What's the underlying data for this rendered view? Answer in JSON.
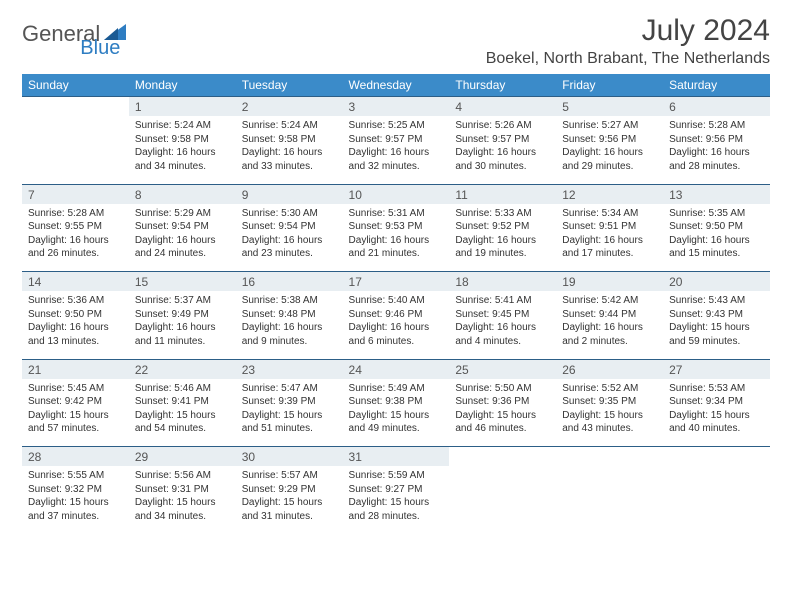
{
  "brand": {
    "part1": "General",
    "part2": "Blue"
  },
  "title": "July 2024",
  "location": "Boekel, North Brabant, The Netherlands",
  "colors": {
    "header_bg": "#3b8bc9",
    "daynum_bg": "#e8eef2",
    "border": "#2c5e87",
    "text": "#333333",
    "logo_blue": "#2e7dc2"
  },
  "day_headers": [
    "Sunday",
    "Monday",
    "Tuesday",
    "Wednesday",
    "Thursday",
    "Friday",
    "Saturday"
  ],
  "weeks": [
    [
      null,
      {
        "n": "1",
        "sr": "5:24 AM",
        "ss": "9:58 PM",
        "dl": "16 hours and 34 minutes."
      },
      {
        "n": "2",
        "sr": "5:24 AM",
        "ss": "9:58 PM",
        "dl": "16 hours and 33 minutes."
      },
      {
        "n": "3",
        "sr": "5:25 AM",
        "ss": "9:57 PM",
        "dl": "16 hours and 32 minutes."
      },
      {
        "n": "4",
        "sr": "5:26 AM",
        "ss": "9:57 PM",
        "dl": "16 hours and 30 minutes."
      },
      {
        "n": "5",
        "sr": "5:27 AM",
        "ss": "9:56 PM",
        "dl": "16 hours and 29 minutes."
      },
      {
        "n": "6",
        "sr": "5:28 AM",
        "ss": "9:56 PM",
        "dl": "16 hours and 28 minutes."
      }
    ],
    [
      {
        "n": "7",
        "sr": "5:28 AM",
        "ss": "9:55 PM",
        "dl": "16 hours and 26 minutes."
      },
      {
        "n": "8",
        "sr": "5:29 AM",
        "ss": "9:54 PM",
        "dl": "16 hours and 24 minutes."
      },
      {
        "n": "9",
        "sr": "5:30 AM",
        "ss": "9:54 PM",
        "dl": "16 hours and 23 minutes."
      },
      {
        "n": "10",
        "sr": "5:31 AM",
        "ss": "9:53 PM",
        "dl": "16 hours and 21 minutes."
      },
      {
        "n": "11",
        "sr": "5:33 AM",
        "ss": "9:52 PM",
        "dl": "16 hours and 19 minutes."
      },
      {
        "n": "12",
        "sr": "5:34 AM",
        "ss": "9:51 PM",
        "dl": "16 hours and 17 minutes."
      },
      {
        "n": "13",
        "sr": "5:35 AM",
        "ss": "9:50 PM",
        "dl": "16 hours and 15 minutes."
      }
    ],
    [
      {
        "n": "14",
        "sr": "5:36 AM",
        "ss": "9:50 PM",
        "dl": "16 hours and 13 minutes."
      },
      {
        "n": "15",
        "sr": "5:37 AM",
        "ss": "9:49 PM",
        "dl": "16 hours and 11 minutes."
      },
      {
        "n": "16",
        "sr": "5:38 AM",
        "ss": "9:48 PM",
        "dl": "16 hours and 9 minutes."
      },
      {
        "n": "17",
        "sr": "5:40 AM",
        "ss": "9:46 PM",
        "dl": "16 hours and 6 minutes."
      },
      {
        "n": "18",
        "sr": "5:41 AM",
        "ss": "9:45 PM",
        "dl": "16 hours and 4 minutes."
      },
      {
        "n": "19",
        "sr": "5:42 AM",
        "ss": "9:44 PM",
        "dl": "16 hours and 2 minutes."
      },
      {
        "n": "20",
        "sr": "5:43 AM",
        "ss": "9:43 PM",
        "dl": "15 hours and 59 minutes."
      }
    ],
    [
      {
        "n": "21",
        "sr": "5:45 AM",
        "ss": "9:42 PM",
        "dl": "15 hours and 57 minutes."
      },
      {
        "n": "22",
        "sr": "5:46 AM",
        "ss": "9:41 PM",
        "dl": "15 hours and 54 minutes."
      },
      {
        "n": "23",
        "sr": "5:47 AM",
        "ss": "9:39 PM",
        "dl": "15 hours and 51 minutes."
      },
      {
        "n": "24",
        "sr": "5:49 AM",
        "ss": "9:38 PM",
        "dl": "15 hours and 49 minutes."
      },
      {
        "n": "25",
        "sr": "5:50 AM",
        "ss": "9:36 PM",
        "dl": "15 hours and 46 minutes."
      },
      {
        "n": "26",
        "sr": "5:52 AM",
        "ss": "9:35 PM",
        "dl": "15 hours and 43 minutes."
      },
      {
        "n": "27",
        "sr": "5:53 AM",
        "ss": "9:34 PM",
        "dl": "15 hours and 40 minutes."
      }
    ],
    [
      {
        "n": "28",
        "sr": "5:55 AM",
        "ss": "9:32 PM",
        "dl": "15 hours and 37 minutes."
      },
      {
        "n": "29",
        "sr": "5:56 AM",
        "ss": "9:31 PM",
        "dl": "15 hours and 34 minutes."
      },
      {
        "n": "30",
        "sr": "5:57 AM",
        "ss": "9:29 PM",
        "dl": "15 hours and 31 minutes."
      },
      {
        "n": "31",
        "sr": "5:59 AM",
        "ss": "9:27 PM",
        "dl": "15 hours and 28 minutes."
      },
      null,
      null,
      null
    ]
  ],
  "labels": {
    "sunrise": "Sunrise: ",
    "sunset": "Sunset: ",
    "daylight": "Daylight: "
  }
}
